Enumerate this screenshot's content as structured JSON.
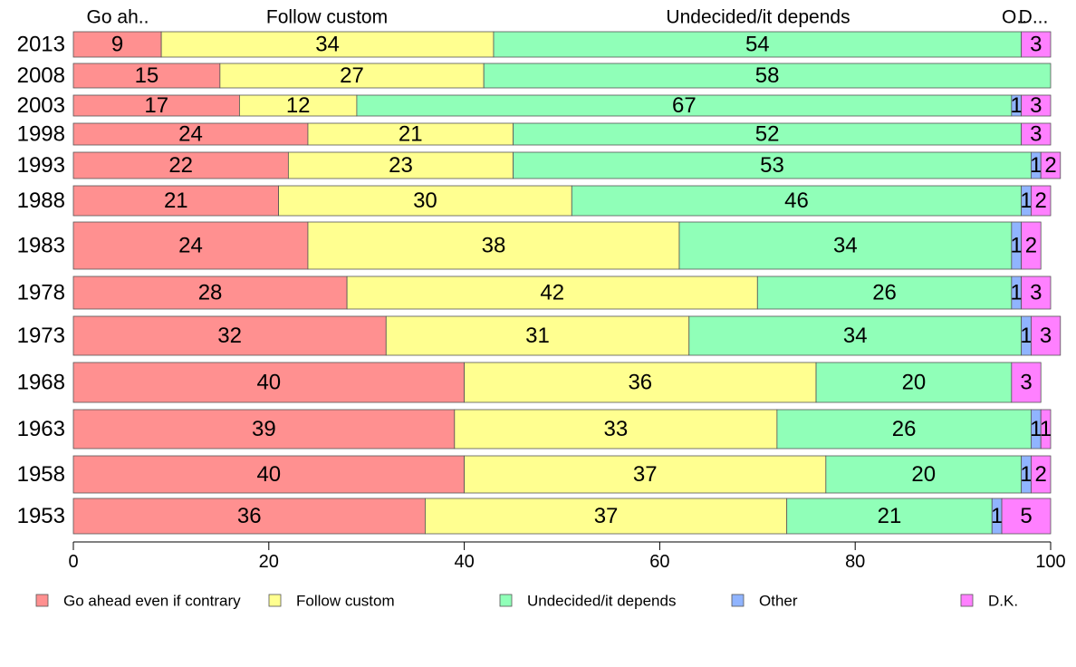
{
  "chart_data": {
    "type": "bar",
    "orientation": "horizontal",
    "stacked": true,
    "categories": [
      "2013",
      "2008",
      "2003",
      "1998",
      "1993",
      "1988",
      "1983",
      "1978",
      "1973",
      "1968",
      "1963",
      "1958",
      "1953"
    ],
    "series": [
      {
        "name": "Go ahead even if contrary",
        "color": "#ff9090",
        "values": [
          9,
          15,
          17,
          24,
          22,
          21,
          24,
          28,
          32,
          40,
          39,
          40,
          36
        ]
      },
      {
        "name": "Follow custom",
        "color": "#ffff90",
        "values": [
          34,
          27,
          12,
          21,
          23,
          30,
          38,
          42,
          31,
          36,
          33,
          37,
          37
        ]
      },
      {
        "name": "Undecided/it depends",
        "color": "#90ffb8",
        "values": [
          54,
          58,
          67,
          52,
          53,
          46,
          34,
          26,
          34,
          20,
          26,
          20,
          21
        ]
      },
      {
        "name": "Other",
        "color": "#90b4ff",
        "values": [
          0,
          0,
          1,
          0,
          1,
          1,
          1,
          1,
          1,
          0,
          1,
          1,
          1
        ]
      },
      {
        "name": "D.K.",
        "color": "#ff80ff",
        "values": [
          3,
          0,
          3,
          3,
          2,
          2,
          2,
          3,
          3,
          3,
          1,
          2,
          5
        ]
      }
    ],
    "top_labels": [
      "Go ah..",
      "Follow custom",
      "Undecided/it depends",
      "O..",
      "D..."
    ],
    "x_ticks": [
      0,
      20,
      40,
      60,
      80,
      100
    ],
    "xlim": [
      0,
      100
    ],
    "legend_position": "bottom",
    "grid": false
  }
}
